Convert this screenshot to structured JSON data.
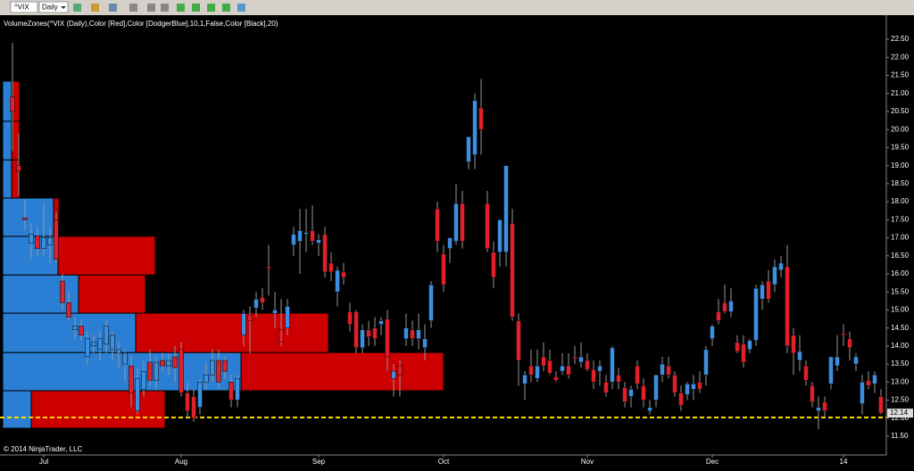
{
  "toolbar": {
    "symbol": "^VIX",
    "interval": "Daily"
  },
  "chart_data": {
    "type": "candlestick",
    "indicator_label": "VolumeZones(^VIX (Daily),Color [Red],Color [DodgerBlue],10,1,False,Color [Black],20)",
    "copyright": "© 2014 NinjaTrader, LLC",
    "up_color": "#3d8fe0",
    "down_color": "#e0202a",
    "xlim": [
      -2,
      139.86
    ],
    "xticks": [
      {
        "value": 5,
        "label": "Jul"
      },
      {
        "value": 27,
        "label": "Aug"
      },
      {
        "value": 49,
        "label": "Sep"
      },
      {
        "value": 69,
        "label": "Oct"
      },
      {
        "value": 92,
        "label": "Nov"
      },
      {
        "value": 112,
        "label": "Dec"
      },
      {
        "value": 133,
        "label": "14"
      }
    ],
    "ylim": [
      10.98,
      23.17
    ],
    "yticks": [
      {
        "value": 11.5,
        "label": "11.50"
      },
      {
        "value": 12,
        "label": "12.00"
      },
      {
        "value": 12.5,
        "label": "12.50"
      },
      {
        "value": 13,
        "label": "13.00"
      },
      {
        "value": 13.5,
        "label": "13.50"
      },
      {
        "value": 14,
        "label": "14.00"
      },
      {
        "value": 14.5,
        "label": "14.50"
      },
      {
        "value": 15,
        "label": "15.00"
      },
      {
        "value": 15.5,
        "label": "15.50"
      },
      {
        "value": 16,
        "label": "16.00"
      },
      {
        "value": 16.5,
        "label": "16.50"
      },
      {
        "value": 17,
        "label": "17.00"
      },
      {
        "value": 17.5,
        "label": "17.50"
      },
      {
        "value": 18,
        "label": "18.00"
      },
      {
        "value": 18.5,
        "label": "18.50"
      },
      {
        "value": 19,
        "label": "19.00"
      },
      {
        "value": 19.5,
        "label": "19.50"
      },
      {
        "value": 20,
        "label": "20.00"
      },
      {
        "value": 20.5,
        "label": "20.50"
      },
      {
        "value": 21,
        "label": "21.00"
      },
      {
        "value": 21.5,
        "label": "21.50"
      },
      {
        "value": 22,
        "label": "22.00"
      },
      {
        "value": 22.5,
        "label": "22.50"
      }
    ],
    "last_price": 12.14,
    "horizontal_line": {
      "value": 12.02,
      "color": "#ffd700"
    },
    "open": [
      20.9,
      19.0,
      17.55,
      16.85,
      17.05,
      16.7,
      16.8,
      17.5,
      15.8,
      15.2,
      14.45,
      14.55,
      13.7,
      14.0,
      13.9,
      14.05,
      13.9,
      13.8,
      13.5,
      13.45,
      12.2,
      12.8,
      13.55,
      13.05,
      13.6,
      13.45,
      13.7,
      13.9,
      12.7,
      12.6,
      12.3,
      13.0,
      13.2,
      13.6,
      13.6,
      13.0,
      12.5,
      14.3,
      14.85,
      15.05,
      15.35,
      16.2,
      14.9,
      14.45,
      14.5,
      16.8,
      16.9,
      17.1,
      17.2,
      16.85,
      17.1,
      16.3,
      15.5,
      16.05,
      14.95,
      14.95,
      13.95,
      14.45,
      14.5,
      14.6,
      14.75,
      13.1,
      13.45,
      14.2,
      14.45,
      14.2,
      13.95,
      14.7,
      17.8,
      16.55,
      16.7,
      16.9,
      17.95,
      19.1,
      19.3,
      20.6,
      17.95,
      16.6,
      16.6,
      16.6,
      17.4,
      14.7,
      12.95,
      13.45,
      13.1,
      13.7,
      13.6,
      13.15,
      13.3,
      13.45,
      13.7,
      13.55,
      13.6,
      13.35,
      13.3,
      13.0,
      13.0,
      13.2,
      12.85,
      12.6,
      13.45,
      12.9,
      12.2,
      12.5,
      13.2,
      13.45,
      13.2,
      12.7,
      12.65,
      12.8,
      13.0,
      13.2,
      14.2,
      14.95,
      15.2,
      14.95,
      14.1,
      14.05,
      13.9,
      14.15,
      15.3,
      15.8,
      15.7,
      16.1,
      16.2,
      14.3,
      13.6,
      13.45,
      12.9,
      12.2,
      12.45,
      12.95,
      13.45,
      14.35,
      14.2,
      13.5,
      12.4,
      13.05,
      12.95,
      12.6
    ],
    "high": [
      22.4,
      19.9,
      18.05,
      17.4,
      17.3,
      17.95,
      17.3,
      17.7,
      16.0,
      15.5,
      14.8,
      14.7,
      14.4,
      14.3,
      14.4,
      14.7,
      14.4,
      14.1,
      13.9,
      13.7,
      13.4,
      13.6,
      13.9,
      13.7,
      13.8,
      13.8,
      14.0,
      14.1,
      13.0,
      12.8,
      13.1,
      13.5,
      13.9,
      13.9,
      13.7,
      13.2,
      13.2,
      15.0,
      15.1,
      15.5,
      15.6,
      16.8,
      15.5,
      15.3,
      15.3,
      17.3,
      17.8,
      17.8,
      17.9,
      17.1,
      17.3,
      16.6,
      16.2,
      16.3,
      15.2,
      15.0,
      14.6,
      14.7,
      14.8,
      14.8,
      15.0,
      13.5,
      13.6,
      14.9,
      14.7,
      14.9,
      14.6,
      15.8,
      18.0,
      16.8,
      17.0,
      18.5,
      18.3,
      19.8,
      21.0,
      21.4,
      18.3,
      16.9,
      17.5,
      19.0,
      17.8,
      14.9,
      13.3,
      13.9,
      13.9,
      14.1,
      13.9,
      13.3,
      13.8,
      13.8,
      14.0,
      14.1,
      13.8,
      13.6,
      13.6,
      13.2,
      14.0,
      13.4,
      13.0,
      12.9,
      13.6,
      13.1,
      12.5,
      13.2,
      13.7,
      13.7,
      13.3,
      12.9,
      13.0,
      13.2,
      13.3,
      14.0,
      14.6,
      15.3,
      15.7,
      15.6,
      14.3,
      14.3,
      14.2,
      15.7,
      15.8,
      16.1,
      16.4,
      16.5,
      16.8,
      14.5,
      14.3,
      13.6,
      13.0,
      12.6,
      12.6,
      13.7,
      14.3,
      14.6,
      14.4,
      13.8,
      13.2,
      13.3,
      13.3,
      12.8
    ],
    "low": [
      19.4,
      18.15,
      17.2,
      16.4,
      16.5,
      16.5,
      16.3,
      16.3,
      15.0,
      14.7,
      14.2,
      14.15,
      13.5,
      13.8,
      13.6,
      13.8,
      13.6,
      13.4,
      13.0,
      12.3,
      12.1,
      12.6,
      12.9,
      12.8,
      13.3,
      13.2,
      13.0,
      12.6,
      12.0,
      11.9,
      12.1,
      12.8,
      13.0,
      12.8,
      13.1,
      12.3,
      12.3,
      14.0,
      13.8,
      14.8,
      15.0,
      15.4,
      14.5,
      14.0,
      14.3,
      16.5,
      16.0,
      16.6,
      16.8,
      16.5,
      15.9,
      15.8,
      15.1,
      15.7,
      14.4,
      13.8,
      13.8,
      14.0,
      14.0,
      14.3,
      13.3,
      12.6,
      12.6,
      14.0,
      14.0,
      13.9,
      13.6,
      14.5,
      16.6,
      15.5,
      16.3,
      16.8,
      16.7,
      18.9,
      18.9,
      19.3,
      16.6,
      15.6,
      16.2,
      16.2,
      14.7,
      12.9,
      12.5,
      13.0,
      13.0,
      13.3,
      13.2,
      13.0,
      13.2,
      13.1,
      13.5,
      13.4,
      13.3,
      12.8,
      12.9,
      12.6,
      12.8,
      12.8,
      12.3,
      12.3,
      12.8,
      12.3,
      12.1,
      12.3,
      13.0,
      13.1,
      12.6,
      12.2,
      12.5,
      12.5,
      12.7,
      12.9,
      14.0,
      14.6,
      14.9,
      14.8,
      13.8,
      13.4,
      13.8,
      14.0,
      15.0,
      15.2,
      15.5,
      15.9,
      13.8,
      13.2,
      13.3,
      12.9,
      12.3,
      11.7,
      12.0,
      12.8,
      13.3,
      14.0,
      13.6,
      13.3,
      12.1,
      12.8,
      12.7,
      12.1
    ],
    "close": [
      20.5,
      18.85,
      17.5,
      17.1,
      16.7,
      17.0,
      17.0,
      16.4,
      15.2,
      14.8,
      14.55,
      14.3,
      14.2,
      14.1,
      14.2,
      14.55,
      14.3,
      13.9,
      13.8,
      12.7,
      13.1,
      13.3,
      13.05,
      13.55,
      13.45,
      13.6,
      13.4,
      12.7,
      12.2,
      12.0,
      13.0,
      13.2,
      13.6,
      13.0,
      13.3,
      12.5,
      13.1,
      14.9,
      14.7,
      15.3,
      15.2,
      16.15,
      15.0,
      14.1,
      15.1,
      17.1,
      17.2,
      17.15,
      16.9,
      16.95,
      16.05,
      16.05,
      16.1,
      15.9,
      14.6,
      13.95,
      14.45,
      14.25,
      14.2,
      14.7,
      13.7,
      13.3,
      13.2,
      14.5,
      14.2,
      14.45,
      14.2,
      15.7,
      16.9,
      15.7,
      17.0,
      17.95,
      16.9,
      19.8,
      20.8,
      20.0,
      16.7,
      15.9,
      17.5,
      19.0,
      14.8,
      13.6,
      13.2,
      13.2,
      13.45,
      13.45,
      13.25,
      13.05,
      13.45,
      13.2,
      13.65,
      13.7,
      13.35,
      13.0,
      13.45,
      12.7,
      13.95,
      13.0,
      12.45,
      12.8,
      12.95,
      12.5,
      12.3,
      13.2,
      13.5,
      13.2,
      12.7,
      12.35,
      12.95,
      12.95,
      12.8,
      13.9,
      14.55,
      14.7,
      14.95,
      15.25,
      13.85,
      13.55,
      14.15,
      15.6,
      15.7,
      15.3,
      16.2,
      16.3,
      14.0,
      13.8,
      13.85,
      13.05,
      12.45,
      12.3,
      12.2,
      13.7,
      13.7,
      14.3,
      13.95,
      13.7,
      13.0,
      12.9,
      13.2,
      12.14
    ],
    "volume_zones": {
      "up_color": "#2a7fd4",
      "down_color": "#cc0000",
      "xlim": [
        0,
        500
      ],
      "zones": [
        {
          "low": 11.72,
          "high": 12.76,
          "up": 32,
          "down": 150
        },
        {
          "low": 12.76,
          "high": 13.82,
          "up": 267,
          "down": 227
        },
        {
          "low": 13.82,
          "high": 14.91,
          "up": 149,
          "down": 216
        },
        {
          "low": 14.91,
          "high": 15.97,
          "up": 85,
          "down": 75
        },
        {
          "low": 15.97,
          "high": 17.04,
          "up": 62,
          "down": 109
        },
        {
          "low": 17.04,
          "high": 18.1,
          "up": 57,
          "down": 6
        },
        {
          "low": 18.1,
          "high": 19.16,
          "up": 10,
          "down": 9
        },
        {
          "low": 19.16,
          "high": 20.23,
          "up": 10,
          "down": 9
        },
        {
          "low": 20.23,
          "high": 21.34,
          "up": 10,
          "down": 9
        }
      ]
    }
  }
}
